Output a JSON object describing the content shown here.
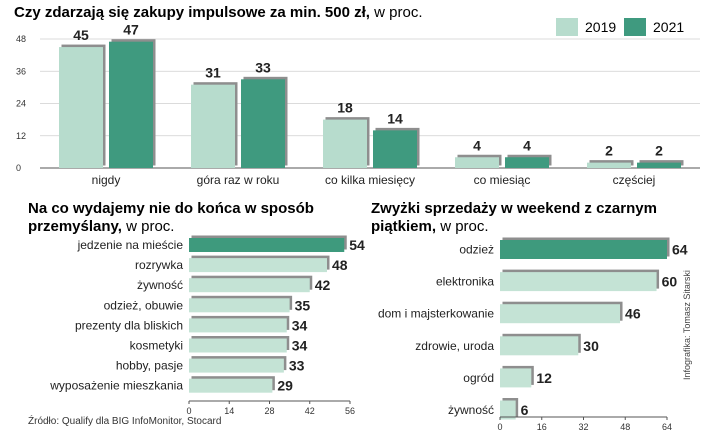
{
  "colors": {
    "c2019": "#b7dccd",
    "c2021": "#3f9a7f",
    "light_bar": "#c4e3d5",
    "dark_bar": "#3e9a7d",
    "shadow": "#8e8e8e",
    "axis": "#555555"
  },
  "source": "Źródło: Qualify dla BIG InfoMonitor, Stocard",
  "credit": "Infografika: Tomasz Sitarski",
  "chart_data": [
    {
      "type": "bar",
      "title": "Czy zdarzają się zakupy impulsowe za min. 500 zł,",
      "title_suffix": "w proc.",
      "categories": [
        "nigdy",
        "góra raz w roku",
        "co kilka miesięcy",
        "co miesiąc",
        "częściej"
      ],
      "series": [
        {
          "name": "2019",
          "values": [
            45,
            31,
            18,
            4,
            2
          ]
        },
        {
          "name": "2021",
          "values": [
            47,
            33,
            14,
            4,
            2
          ]
        }
      ],
      "ylim": [
        0,
        48
      ],
      "yticks": [
        0,
        12,
        24,
        36,
        48
      ],
      "legend": "top-right"
    },
    {
      "type": "bar",
      "orientation": "horizontal",
      "title_lines": [
        "Na co wydajemy nie do końca w sposób",
        "przemyślany,"
      ],
      "title_suffix": "w proc.",
      "categories": [
        "jedzenie na mieście",
        "rozrywka",
        "żywność",
        "odzież, obuwie",
        "prezenty dla bliskich",
        "kosmetyki",
        "hobby, pasje",
        "wyposażenie mieszkania"
      ],
      "values": [
        54,
        48,
        42,
        35,
        34,
        34,
        33,
        29
      ],
      "highlight_index": 0,
      "xlim": [
        0,
        56
      ],
      "xticks": [
        0,
        14,
        28,
        42,
        56
      ]
    },
    {
      "type": "bar",
      "orientation": "horizontal",
      "title_lines": [
        "Zwyżki sprzedaży w weekend z czarnym",
        "piątkiem,"
      ],
      "title_suffix": "w proc.",
      "categories": [
        "odzież",
        "elektronika",
        "dom i majsterkowanie",
        "zdrowie, uroda",
        "ogród",
        "żywność"
      ],
      "values": [
        64,
        60,
        46,
        30,
        12,
        6
      ],
      "highlight_index": 0,
      "xlim": [
        0,
        64
      ],
      "xticks": [
        0,
        16,
        32,
        48,
        64
      ]
    }
  ]
}
